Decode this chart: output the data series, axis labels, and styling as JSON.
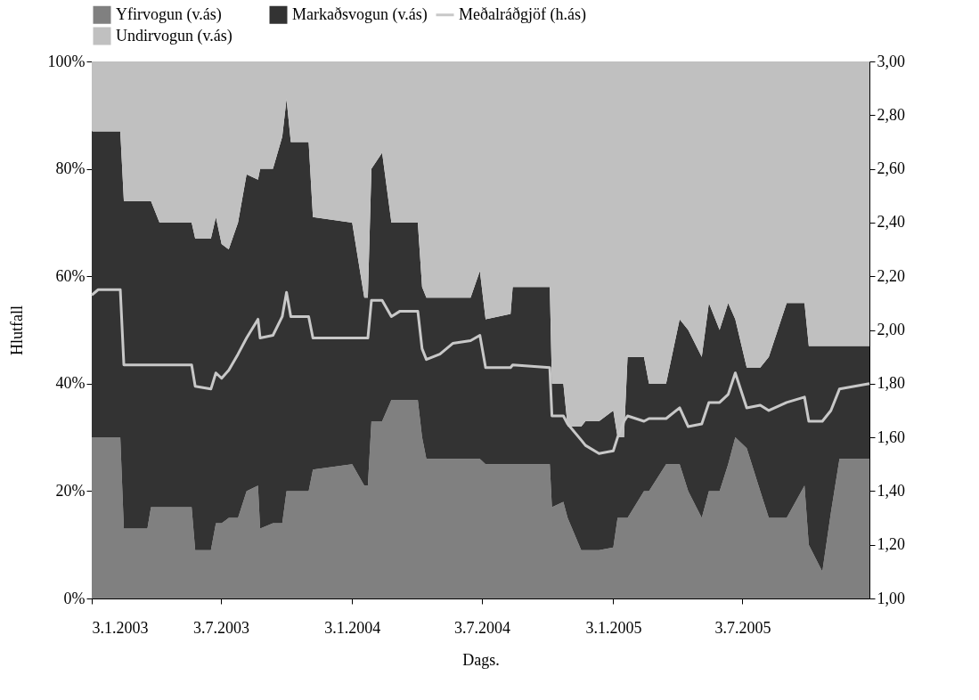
{
  "chart_data": {
    "type": "area",
    "stacked": true,
    "xlabel": "Dags.",
    "ylabel": "Hlutfall",
    "legend": "top",
    "grid": false,
    "x": [
      "2003-01-03",
      "2003-01-12",
      "2003-02-12",
      "2003-02-17",
      "2003-03-22",
      "2003-03-27",
      "2003-04-08",
      "2003-05-23",
      "2003-05-28",
      "2003-06-19",
      "2003-06-26",
      "2003-07-04",
      "2003-07-14",
      "2003-07-27",
      "2003-08-08",
      "2003-08-24",
      "2003-08-27",
      "2003-09-14",
      "2003-09-27",
      "2003-10-03",
      "2003-10-09",
      "2003-11-03",
      "2003-11-09",
      "2004-01-03",
      "2004-01-20",
      "2004-01-25",
      "2004-01-30",
      "2004-02-14",
      "2004-02-27",
      "2004-03-10",
      "2004-04-04",
      "2004-04-10",
      "2004-04-16",
      "2004-05-05",
      "2004-05-23",
      "2004-06-17",
      "2004-06-30",
      "2004-07-08",
      "2004-08-12",
      "2004-08-15",
      "2004-10-06",
      "2004-10-09",
      "2004-10-25",
      "2004-10-31",
      "2004-11-19",
      "2004-11-25",
      "2004-12-14",
      "2005-01-03",
      "2005-01-09",
      "2005-01-18",
      "2005-01-23",
      "2005-02-15",
      "2005-02-22",
      "2005-03-18",
      "2005-04-06",
      "2005-04-18",
      "2005-05-07",
      "2005-05-17",
      "2005-06-01",
      "2005-06-13",
      "2005-06-23",
      "2005-07-09",
      "2005-07-28",
      "2005-08-09",
      "2005-09-03",
      "2005-09-28",
      "2005-10-04",
      "2005-10-23",
      "2005-11-04",
      "2005-11-16",
      "2005-12-28"
    ],
    "series": [
      {
        "name": "Yfirvogun (v.ás)",
        "color": "#808080",
        "values": [
          30,
          30,
          30,
          13,
          13,
          17,
          17,
          17,
          9,
          9,
          14,
          14,
          15,
          15,
          20,
          21,
          13,
          14,
          14,
          20,
          20,
          20,
          24,
          25,
          21,
          21,
          33,
          33,
          37,
          37,
          37,
          30,
          26,
          26,
          26,
          26,
          26,
          25,
          25,
          25,
          25,
          17,
          18,
          15,
          9,
          9,
          9,
          9.5,
          15,
          15,
          15,
          20,
          20,
          25,
          25,
          20,
          15,
          20,
          20,
          25,
          30,
          28,
          20,
          15,
          15,
          21,
          10,
          5,
          16,
          26,
          26
        ]
      },
      {
        "name": "Markaðsvogun (v.ás)",
        "color": "#333333",
        "values": [
          57,
          57,
          57,
          61,
          61,
          57,
          53,
          53,
          58,
          58,
          57,
          52,
          50,
          55,
          59,
          57,
          67,
          66,
          72,
          73,
          65,
          65,
          47,
          45,
          35,
          35,
          47,
          50,
          33,
          33,
          33,
          28,
          30,
          30,
          30,
          30,
          35,
          27,
          28,
          33,
          33,
          23,
          22,
          17,
          23,
          24,
          24,
          25.5,
          15,
          15,
          30,
          25,
          20,
          15,
          27,
          30,
          30,
          35,
          30,
          30,
          22,
          15,
          23,
          30,
          40,
          34,
          37,
          42,
          31,
          21,
          21
        ]
      },
      {
        "name": "Undirvogun (v.ás)",
        "color": "#c0c0c0",
        "values": [
          13,
          13,
          13,
          26,
          26,
          26,
          30,
          30,
          33,
          33,
          29,
          34,
          35,
          30,
          21,
          22,
          20,
          20,
          14,
          7,
          15,
          15,
          29,
          30,
          44,
          44,
          20,
          17,
          30,
          30,
          30,
          42,
          44,
          44,
          44,
          44,
          39,
          48,
          47,
          42,
          42,
          60,
          60,
          68,
          68,
          67,
          67,
          65,
          70,
          70,
          55,
          55,
          60,
          60,
          48,
          50,
          55,
          45,
          50,
          45,
          48,
          57,
          57,
          55,
          45,
          45,
          53,
          53,
          53,
          53,
          53
        ]
      },
      {
        "name": "Meðalráðgjöf (h.ás)",
        "type": "line",
        "axis": "y2",
        "color": "#c8c8c8",
        "values": [
          2.13,
          2.15,
          2.15,
          1.87,
          1.87,
          1.87,
          1.87,
          1.87,
          1.79,
          1.78,
          1.84,
          1.82,
          1.85,
          1.91,
          1.97,
          2.04,
          1.97,
          1.98,
          2.05,
          2.14,
          2.05,
          2.05,
          1.97,
          1.97,
          1.97,
          1.97,
          2.11,
          2.11,
          2.05,
          2.07,
          2.07,
          1.93,
          1.89,
          1.91,
          1.95,
          1.96,
          1.98,
          1.86,
          1.86,
          1.87,
          1.86,
          1.68,
          1.68,
          1.65,
          1.59,
          1.57,
          1.54,
          1.55,
          1.6,
          1.66,
          1.68,
          1.66,
          1.67,
          1.67,
          1.71,
          1.64,
          1.65,
          1.73,
          1.73,
          1.76,
          1.84,
          1.71,
          1.72,
          1.7,
          1.73,
          1.75,
          1.66,
          1.66,
          1.7,
          1.78,
          1.8
        ]
      }
    ],
    "xlim": [
      "2003-01-03",
      "2005-12-28"
    ],
    "xticks": [
      {
        "value": "2003-01-03",
        "label": "3.1.2003"
      },
      {
        "value": "2003-07-03",
        "label": "3.7.2003"
      },
      {
        "value": "2004-01-03",
        "label": "3.1.2004"
      },
      {
        "value": "2004-07-03",
        "label": "3.7.2004"
      },
      {
        "value": "2005-01-03",
        "label": "3.1.2005"
      },
      {
        "value": "2005-07-03",
        "label": "3.7.2005"
      }
    ],
    "ylim": [
      0,
      100
    ],
    "yticks": [
      {
        "value": 0,
        "label": "0%"
      },
      {
        "value": 20,
        "label": "20%"
      },
      {
        "value": 40,
        "label": "40%"
      },
      {
        "value": 60,
        "label": "60%"
      },
      {
        "value": 80,
        "label": "80%"
      },
      {
        "value": 100,
        "label": "100%"
      }
    ],
    "y2lim": [
      1,
      3
    ],
    "y2ticks": [
      {
        "value": 1,
        "label": "1,00"
      },
      {
        "value": 1.2,
        "label": "1,20"
      },
      {
        "value": 1.4,
        "label": "1,40"
      },
      {
        "value": 1.6,
        "label": "1,60"
      },
      {
        "value": 1.8,
        "label": "1,80"
      },
      {
        "value": 2,
        "label": "2,00"
      },
      {
        "value": 2.2,
        "label": "2,20"
      },
      {
        "value": 2.4,
        "label": "2,40"
      },
      {
        "value": 2.6,
        "label": "2,60"
      },
      {
        "value": 2.8,
        "label": "2,80"
      },
      {
        "value": 3,
        "label": "3,00"
      }
    ]
  }
}
